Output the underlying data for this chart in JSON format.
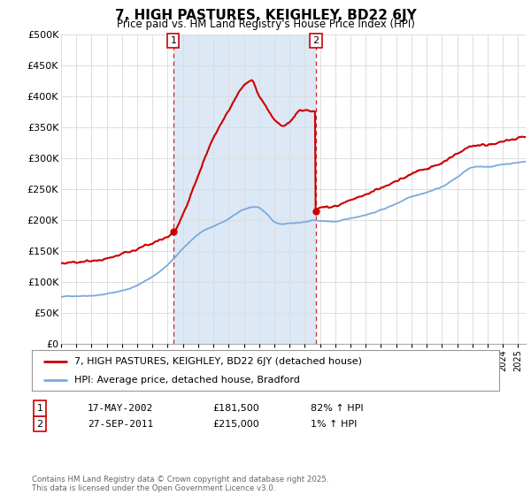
{
  "title": "7, HIGH PASTURES, KEIGHLEY, BD22 6JY",
  "subtitle": "Price paid vs. HM Land Registry's House Price Index (HPI)",
  "background_color": "#ffffff",
  "plot_bg_color": "#ffffff",
  "shade_color": "#dce8f5",
  "line1_color": "#cc0000",
  "line2_color": "#7aaadd",
  "grid_color": "#dddddd",
  "ylim": [
    0,
    500000
  ],
  "yticks": [
    0,
    50000,
    100000,
    150000,
    200000,
    250000,
    300000,
    350000,
    400000,
    450000,
    500000
  ],
  "ytick_labels": [
    "£0",
    "£50K",
    "£100K",
    "£150K",
    "£200K",
    "£250K",
    "£300K",
    "£350K",
    "£400K",
    "£450K",
    "£500K"
  ],
  "legend_label1": "7, HIGH PASTURES, KEIGHLEY, BD22 6JY (detached house)",
  "legend_label2": "HPI: Average price, detached house, Bradford",
  "marker1_date": "17-MAY-2002",
  "marker1_price": "£181,500",
  "marker1_hpi": "82% ↑ HPI",
  "marker2_date": "27-SEP-2011",
  "marker2_price": "£215,000",
  "marker2_hpi": "1% ↑ HPI",
  "footer": "Contains HM Land Registry data © Crown copyright and database right 2025.\nThis data is licensed under the Open Government Licence v3.0.",
  "year_start": 1995.0,
  "year_end": 2025.5,
  "m1_year": 2002.37,
  "m2_year": 2011.74
}
